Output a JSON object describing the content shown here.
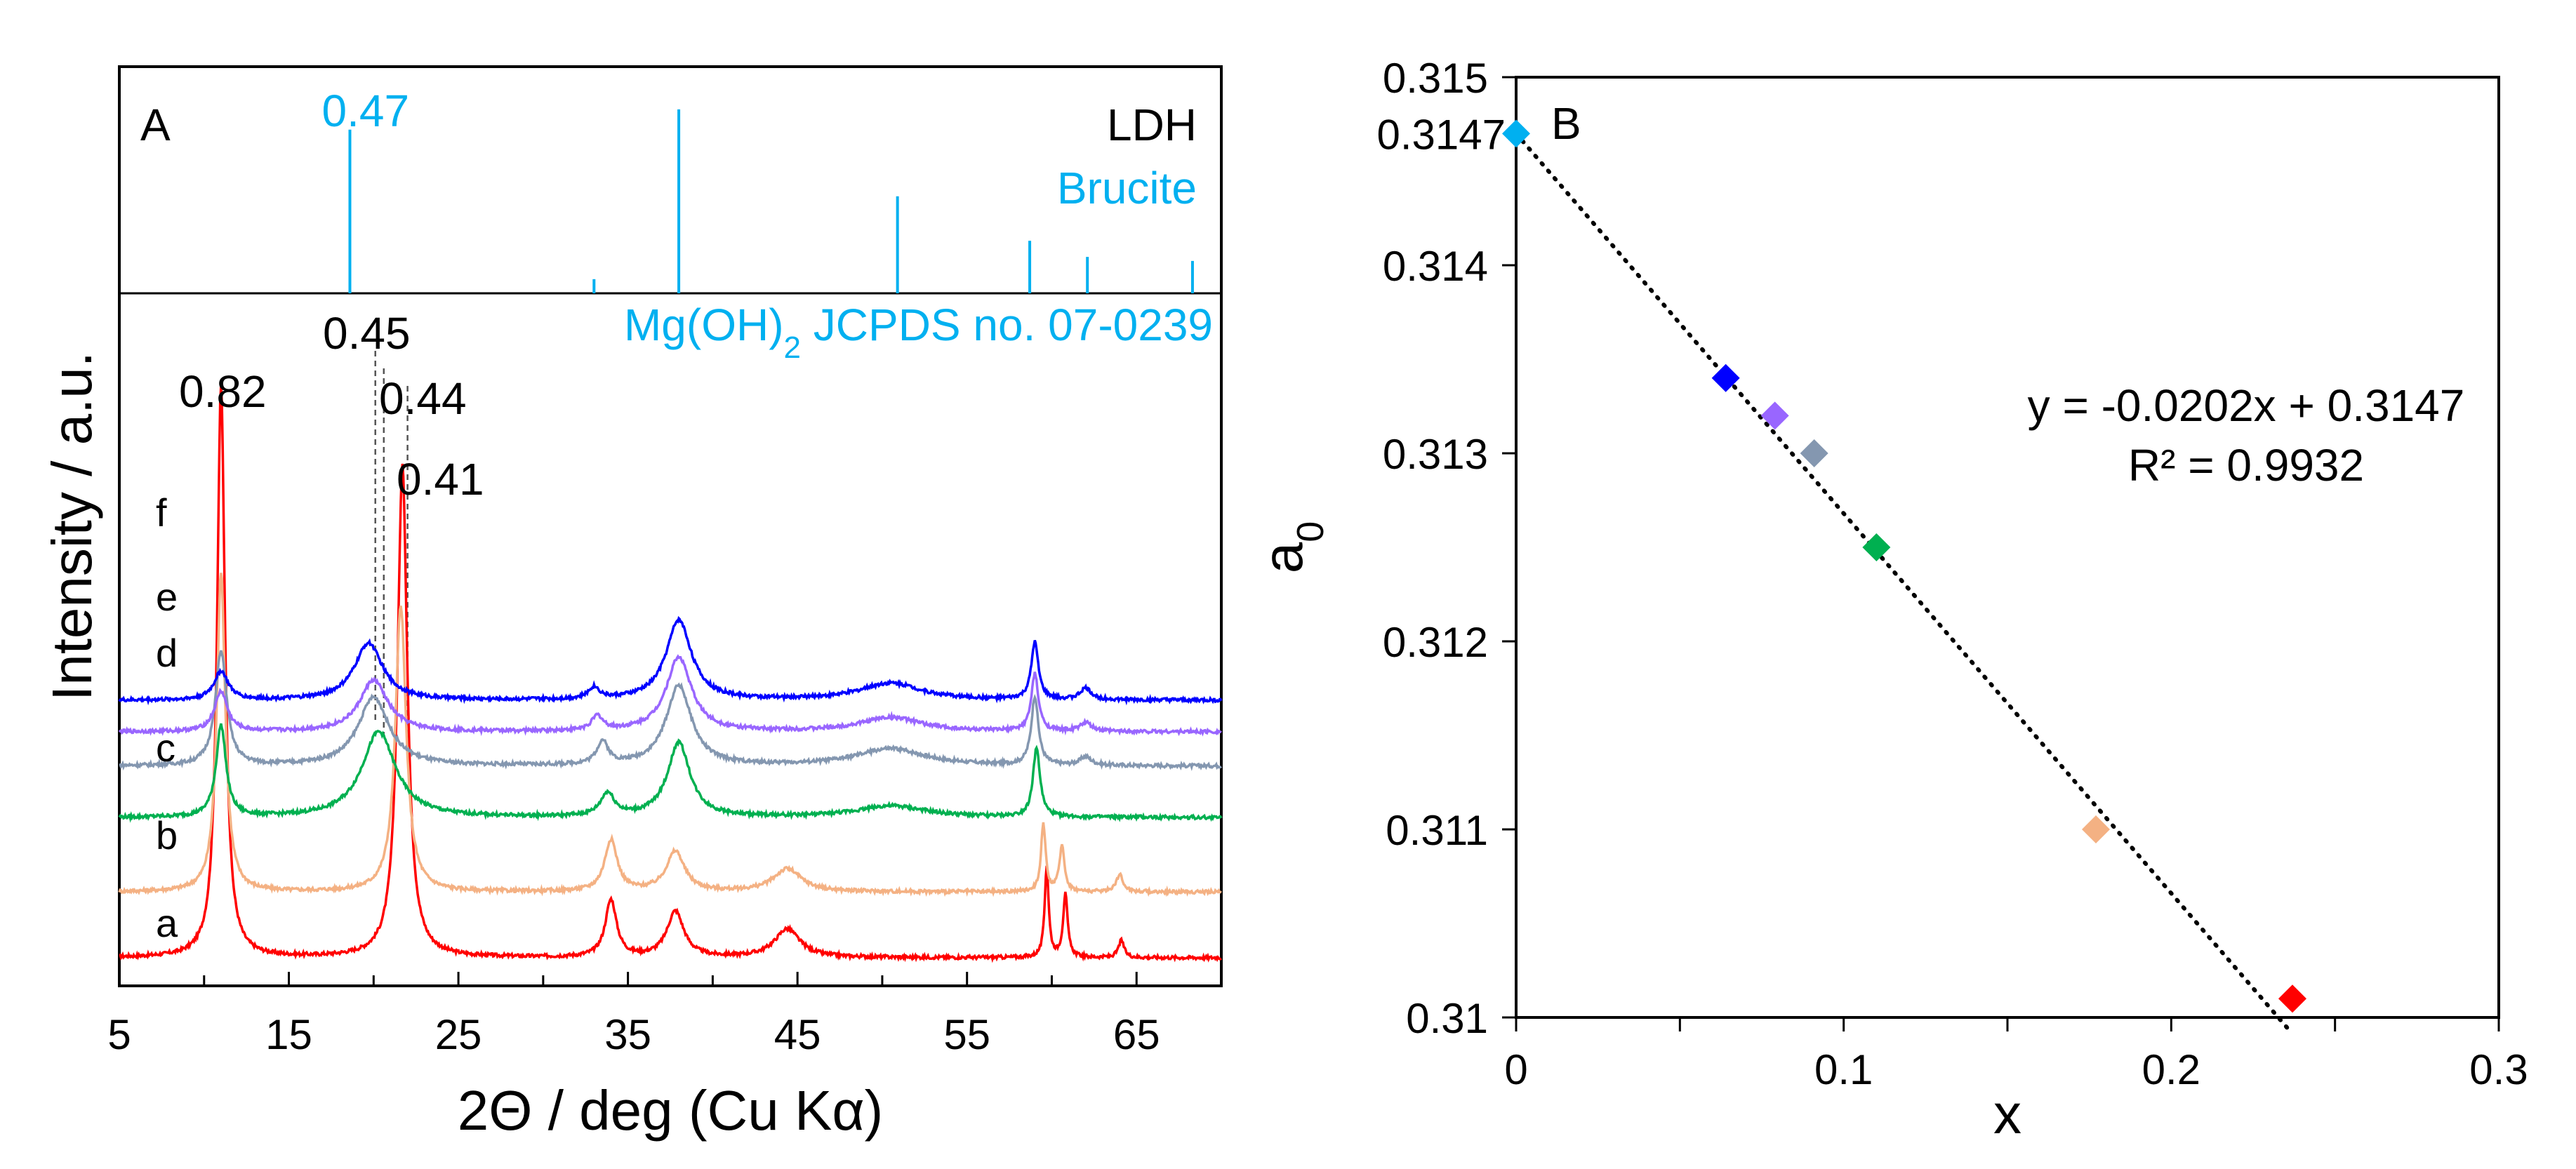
{
  "chart_data": [
    {
      "panel": "A",
      "type": "line",
      "title": "",
      "xlabel": "2Θ / deg (Cu Kα)",
      "ylabel": "Intensity / a.u.",
      "xlim": [
        5,
        70
      ],
      "xticks": [
        5,
        15,
        25,
        35,
        45,
        55,
        65
      ],
      "grid": false,
      "top_panel": {
        "legend": [
          "LDH",
          "Brucite"
        ],
        "reference_label_main": "Mg(OH)",
        "reference_label_sub": "2",
        "reference_label_tail": " JCPDS no. 07-0239",
        "reference_peaks": [
          {
            "x": 18.6,
            "height": 0.81
          },
          {
            "x": 33.0,
            "height": 0.07
          },
          {
            "x": 38.0,
            "height": 0.91
          },
          {
            "x": 50.9,
            "height": 0.48
          },
          {
            "x": 58.7,
            "height": 0.26
          },
          {
            "x": 62.1,
            "height": 0.18
          },
          {
            "x": 68.3,
            "height": 0.16
          }
        ],
        "peak_label": "0.47",
        "peak_label_x": 18.6
      },
      "annotations": [
        {
          "text": "0.82",
          "x": 11.0
        },
        {
          "text": "0.45",
          "x": 20.1
        },
        {
          "text": "0.44",
          "x": 20.6
        },
        {
          "text": "0.41",
          "x": 22.0
        }
      ],
      "guide_lines": [
        20.1,
        20.6,
        22.0
      ],
      "series": [
        {
          "name": "a",
          "color": "#ff0000",
          "baseline": 0.0,
          "peaks": [
            [
              11.0,
              1.0,
              0.28
            ],
            [
              21.7,
              0.86,
              0.35
            ],
            [
              34.0,
              0.1,
              0.4
            ],
            [
              37.8,
              0.08,
              0.6
            ],
            [
              44.4,
              0.05,
              0.9
            ],
            [
              59.7,
              0.16,
              0.14
            ],
            [
              60.8,
              0.11,
              0.16
            ],
            [
              64.1,
              0.03,
              0.2
            ]
          ]
        },
        {
          "name": "b",
          "color": "#f4b183",
          "baseline": 0.115,
          "peaks": [
            [
              11.0,
              0.56,
              0.3
            ],
            [
              21.6,
              0.5,
              0.38
            ],
            [
              34.0,
              0.09,
              0.45
            ],
            [
              37.8,
              0.07,
              0.65
            ],
            [
              44.4,
              0.04,
              1.0
            ],
            [
              59.5,
              0.12,
              0.16
            ],
            [
              60.6,
              0.08,
              0.18
            ],
            [
              64.0,
              0.03,
              0.25
            ]
          ]
        },
        {
          "name": "c",
          "color": "#00b050",
          "baseline": 0.245,
          "peaks": [
            [
              11.0,
              0.16,
              0.35
            ],
            [
              20.3,
              0.15,
              1.2
            ],
            [
              33.8,
              0.04,
              0.5
            ],
            [
              38.0,
              0.13,
              0.8
            ],
            [
              50.5,
              0.02,
              2.5
            ],
            [
              59.1,
              0.12,
              0.25
            ]
          ]
        },
        {
          "name": "d",
          "color": "#8497b0",
          "baseline": 0.335,
          "peaks": [
            [
              11.0,
              0.2,
              0.4
            ],
            [
              20.0,
              0.12,
              1.1
            ],
            [
              33.5,
              0.04,
              0.4
            ],
            [
              38.0,
              0.14,
              0.9
            ],
            [
              50.5,
              0.03,
              2.5
            ],
            [
              59.0,
              0.12,
              0.25
            ],
            [
              62.0,
              0.015,
              0.4
            ]
          ]
        },
        {
          "name": "e",
          "color": "#9966ff",
          "baseline": 0.395,
          "peaks": [
            [
              11.0,
              0.07,
              0.45
            ],
            [
              20.0,
              0.09,
              1.0
            ],
            [
              33.2,
              0.025,
              0.4
            ],
            [
              38.0,
              0.13,
              0.9
            ],
            [
              50.5,
              0.025,
              2.2
            ],
            [
              59.0,
              0.1,
              0.25
            ],
            [
              62.0,
              0.015,
              0.4
            ]
          ]
        },
        {
          "name": "f",
          "color": "#0000ff",
          "baseline": 0.45,
          "peaks": [
            [
              11.0,
              0.05,
              0.5
            ],
            [
              19.7,
              0.1,
              1.0
            ],
            [
              33.0,
              0.02,
              0.4
            ],
            [
              38.0,
              0.14,
              0.9
            ],
            [
              50.5,
              0.03,
              2.2
            ],
            [
              59.0,
              0.1,
              0.25
            ],
            [
              62.0,
              0.02,
              0.4
            ]
          ]
        }
      ],
      "series_labels": [
        "a",
        "b",
        "c",
        "d",
        "e",
        "f"
      ]
    },
    {
      "panel": "B",
      "type": "scatter",
      "title": "",
      "xlabel": "x",
      "ylabel_main": "a",
      "ylabel_sub": "0",
      "xlim": [
        0,
        0.3
      ],
      "ylim": [
        0.31,
        0.315
      ],
      "xticks": [
        0,
        0.1,
        0.2,
        0.3
      ],
      "xtick_labels": [
        "0",
        "0.1",
        "0.2",
        "0.3"
      ],
      "yticks": [
        0.31,
        0.311,
        0.312,
        0.313,
        0.314,
        0.315
      ],
      "ytick_labels": [
        "0.31",
        "0.311",
        "0.312",
        "0.313",
        "0.314",
        "0.315"
      ],
      "extra_ytick": {
        "value": 0.3147,
        "label": "0.3147"
      },
      "grid": false,
      "points": [
        {
          "x": 0.0,
          "y": 0.3147,
          "color": "#00b0f0"
        },
        {
          "x": 0.064,
          "y": 0.3134,
          "color": "#0000ff"
        },
        {
          "x": 0.079,
          "y": 0.3132,
          "color": "#9966ff"
        },
        {
          "x": 0.091,
          "y": 0.313,
          "color": "#8497b0"
        },
        {
          "x": 0.11,
          "y": 0.3125,
          "color": "#00b050"
        },
        {
          "x": 0.177,
          "y": 0.311,
          "color": "#f4b183"
        },
        {
          "x": 0.237,
          "y": 0.3101,
          "color": "#ff0000"
        }
      ],
      "trendline": {
        "slope": -0.0202,
        "intercept": 0.3147,
        "x_range": [
          0,
          0.237
        ]
      },
      "equation": "y = -0.0202x + 0.3147",
      "r_squared": "R² = 0.9932"
    }
  ]
}
